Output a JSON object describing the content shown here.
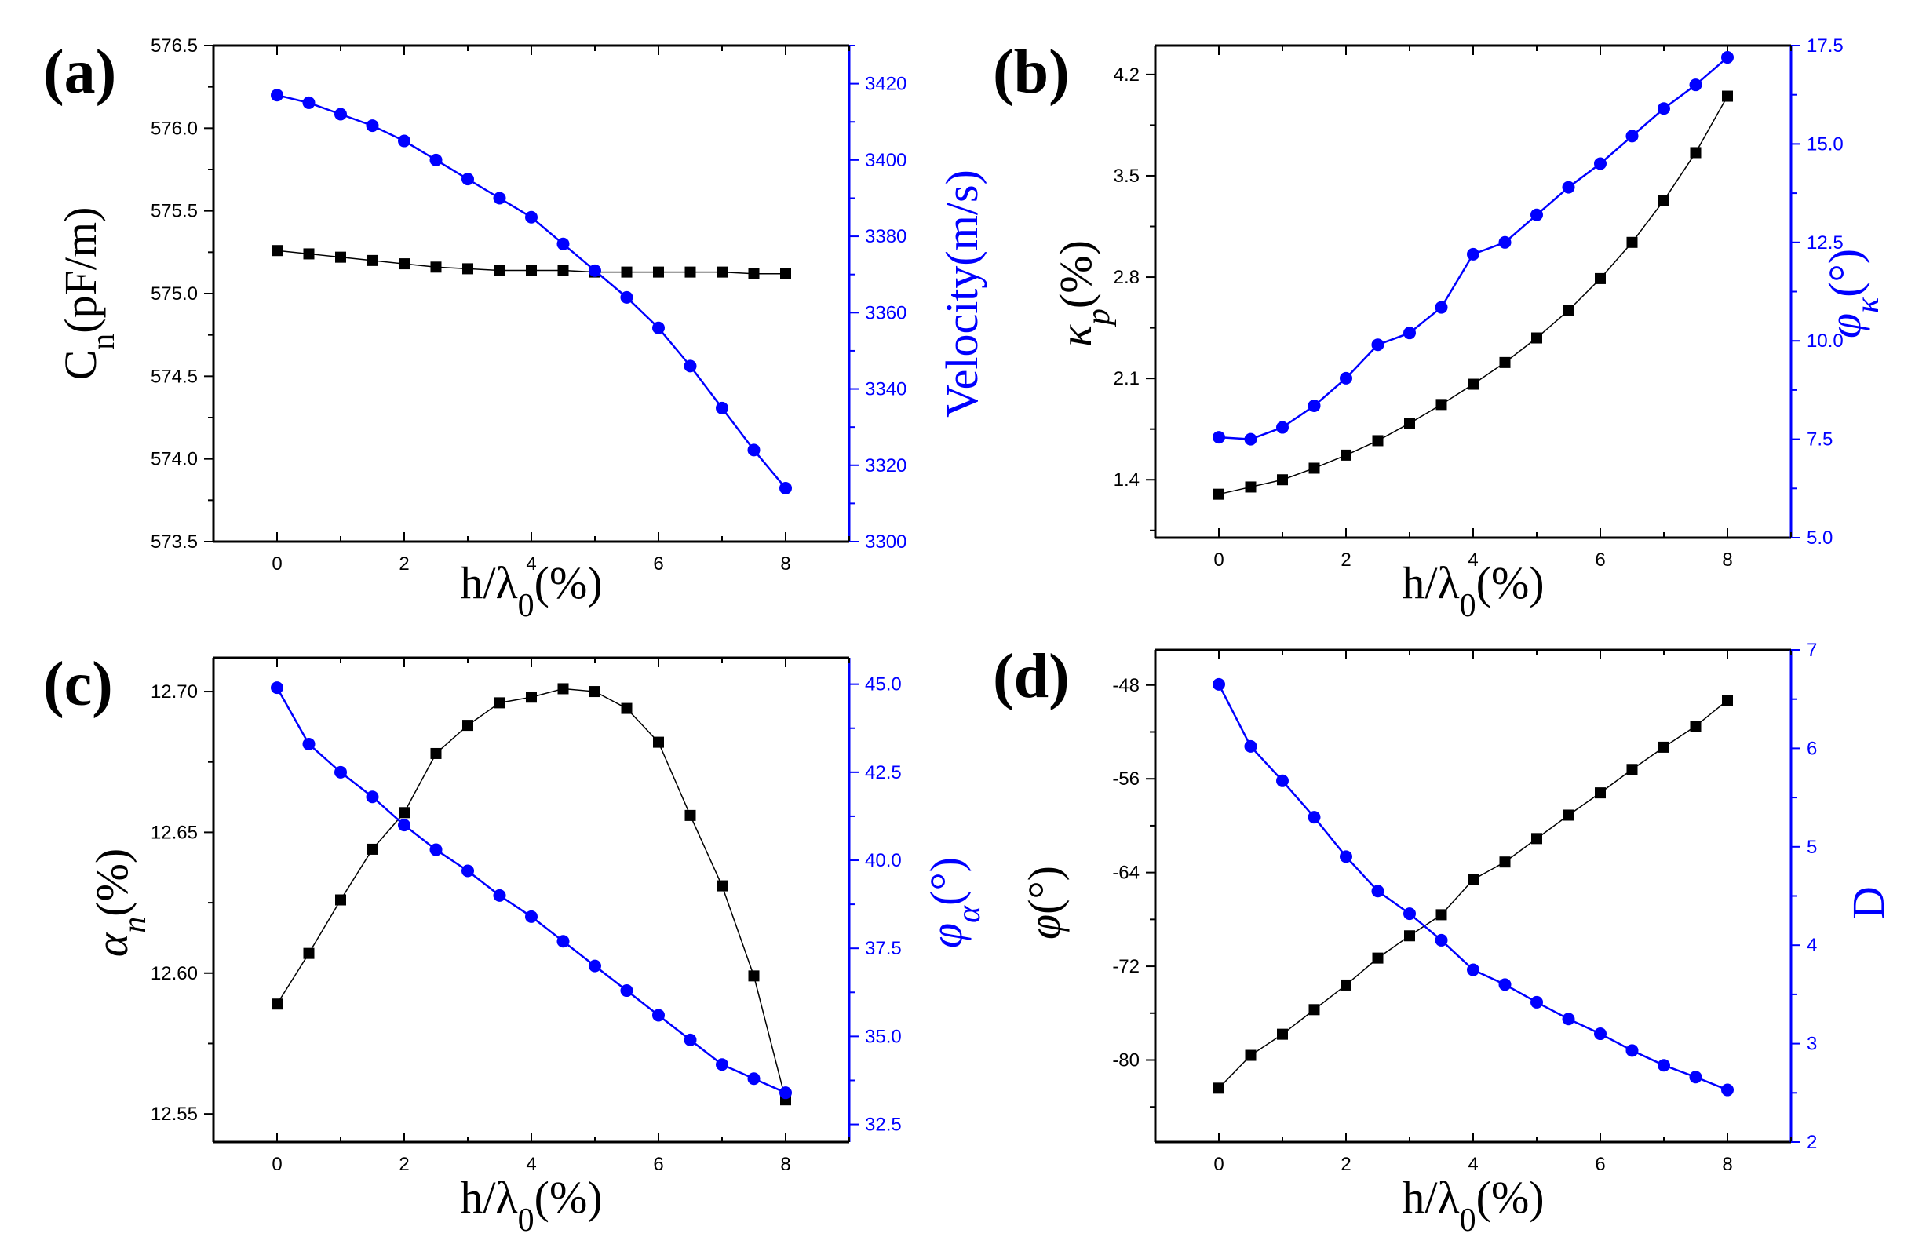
{
  "colors": {
    "left": "#000000",
    "right": "#0000ff"
  },
  "chart_data": [
    {
      "panel": "(a)",
      "type": "line",
      "x": [
        0,
        0.5,
        1,
        1.5,
        2,
        2.5,
        3,
        3.5,
        4,
        4.5,
        5,
        5.5,
        6,
        6.5,
        7,
        7.5,
        8
      ],
      "xlim": [
        -1,
        9
      ],
      "xticks": [
        0,
        2,
        4,
        6,
        8
      ],
      "xlabel_main": "h/λ",
      "xlabel_sub": "0",
      "xlabel_tail": "(%)",
      "left_axis": {
        "label_main": "C",
        "label_sub": "n",
        "label_tail": "(pF/m)",
        "lim": [
          573.5,
          576.5
        ],
        "ticks": [
          573.5,
          574.0,
          574.5,
          575.0,
          575.5,
          576.0,
          576.5
        ],
        "decimals": 1,
        "values": [
          575.26,
          575.24,
          575.22,
          575.2,
          575.18,
          575.16,
          575.15,
          575.14,
          575.14,
          575.14,
          575.13,
          575.13,
          575.13,
          575.13,
          575.13,
          575.12,
          575.12
        ]
      },
      "right_axis": {
        "label_main": "Velocity(m/s)",
        "label_sub": "",
        "label_tail": "",
        "lim": [
          3300,
          3430
        ],
        "ticks": [
          3300,
          3320,
          3340,
          3360,
          3380,
          3400,
          3420
        ],
        "decimals": 0,
        "values": [
          3417,
          3415,
          3412,
          3409,
          3405,
          3400,
          3395,
          3390,
          3385,
          3378,
          3371,
          3364,
          3356,
          3346,
          3335,
          3324,
          3314
        ]
      }
    },
    {
      "panel": "(b)",
      "type": "line",
      "x": [
        0,
        0.5,
        1,
        1.5,
        2,
        2.5,
        3,
        3.5,
        4,
        4.5,
        5,
        5.5,
        6,
        6.5,
        7,
        7.5,
        8
      ],
      "xlim": [
        -1,
        9
      ],
      "xticks": [
        0,
        2,
        4,
        6,
        8
      ],
      "xlabel_main": "h/λ",
      "xlabel_sub": "0",
      "xlabel_tail": "(%)",
      "left_axis": {
        "label_main": "κ",
        "label_sub": "p",
        "label_tail": "(%)",
        "lim": [
          1.0,
          4.4
        ],
        "ticks": [
          1.4,
          2.1,
          2.8,
          3.5,
          4.2
        ],
        "decimals": 1,
        "values": [
          1.3,
          1.35,
          1.4,
          1.48,
          1.57,
          1.67,
          1.79,
          1.92,
          2.06,
          2.21,
          2.38,
          2.57,
          2.79,
          3.04,
          3.33,
          3.66,
          4.05
        ]
      },
      "right_axis": {
        "label_main": "φ",
        "label_sub": "κ",
        "label_tail": "(°)",
        "lim": [
          5.0,
          17.5
        ],
        "ticks": [
          5.0,
          7.5,
          10.0,
          12.5,
          15.0,
          17.5
        ],
        "decimals": 1,
        "values": [
          7.55,
          7.5,
          7.8,
          8.35,
          9.05,
          9.9,
          10.2,
          10.85,
          12.2,
          12.5,
          13.2,
          13.9,
          14.5,
          15.2,
          15.9,
          16.5,
          17.2
        ]
      }
    },
    {
      "panel": "(c)",
      "type": "line",
      "x": [
        0,
        0.5,
        1,
        1.5,
        2,
        2.5,
        3,
        3.5,
        4,
        4.5,
        5,
        5.5,
        6,
        6.5,
        7,
        7.5,
        8
      ],
      "xlim": [
        -1,
        9
      ],
      "xticks": [
        0,
        2,
        4,
        6,
        8
      ],
      "xlabel_main": "h/λ",
      "xlabel_sub": "0",
      "xlabel_tail": "(%)",
      "left_axis": {
        "label_main": "α",
        "label_sub": "n",
        "label_tail": "(%)",
        "lim": [
          12.54,
          12.712
        ],
        "ticks": [
          12.55,
          12.6,
          12.65,
          12.7
        ],
        "decimals": 2,
        "values": [
          12.589,
          12.607,
          12.626,
          12.644,
          12.657,
          12.678,
          12.688,
          12.696,
          12.698,
          12.701,
          12.7,
          12.694,
          12.682,
          12.656,
          12.631,
          12.599,
          12.555
        ]
      },
      "right_axis": {
        "label_main": "φ",
        "label_sub": "α",
        "label_tail": "(°)",
        "lim": [
          32.0,
          45.75
        ],
        "ticks": [
          32.5,
          35.0,
          37.5,
          40.0,
          42.5,
          45.0
        ],
        "decimals": 1,
        "values": [
          44.9,
          43.3,
          42.5,
          41.8,
          41.0,
          40.3,
          39.7,
          39.0,
          38.4,
          37.7,
          37.0,
          36.3,
          35.6,
          34.9,
          34.2,
          33.8,
          33.4
        ]
      }
    },
    {
      "panel": "(d)",
      "type": "line",
      "x": [
        0,
        0.5,
        1,
        1.5,
        2,
        2.5,
        3,
        3.5,
        4,
        4.5,
        5,
        5.5,
        6,
        6.5,
        7,
        7.5,
        8
      ],
      "xlim": [
        -1,
        9
      ],
      "xticks": [
        0,
        2,
        4,
        6,
        8
      ],
      "xlabel_main": "h/λ",
      "xlabel_sub": "0",
      "xlabel_tail": "(%)",
      "left_axis": {
        "label_main": "φ",
        "label_sub": "",
        "label_tail": "(°)",
        "lim": [
          -87,
          -45
        ],
        "ticks": [
          -80,
          -72,
          -64,
          -56,
          -48
        ],
        "decimals": 0,
        "values": [
          -82.4,
          -79.6,
          -77.8,
          -75.7,
          -73.6,
          -71.3,
          -69.4,
          -67.6,
          -64.6,
          -63.1,
          -61.1,
          -59.1,
          -57.2,
          -55.2,
          -53.3,
          -51.5,
          -49.3
        ]
      },
      "right_axis": {
        "label_main": "D",
        "label_sub": "",
        "label_tail": "",
        "lim": [
          2.0,
          7.0
        ],
        "ticks": [
          2,
          3,
          4,
          5,
          6,
          7
        ],
        "decimals": 0,
        "values": [
          6.65,
          6.02,
          5.67,
          5.3,
          4.9,
          4.55,
          4.32,
          4.05,
          3.75,
          3.6,
          3.42,
          3.25,
          3.1,
          2.93,
          2.78,
          2.66,
          2.53
        ]
      }
    }
  ]
}
